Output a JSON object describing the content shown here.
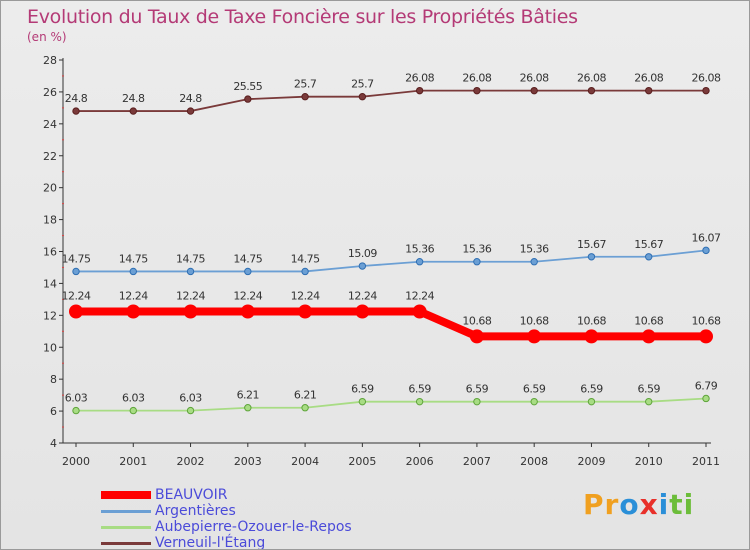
{
  "chart_data": {
    "type": "line",
    "title": "Evolution du Taux de Taxe Foncière sur les Propriétés Bâties",
    "unit_label": "(en %)",
    "x": [
      "2000",
      "2001",
      "2002",
      "2003",
      "2004",
      "2005",
      "2006",
      "2007",
      "2008",
      "2009",
      "2010",
      "2011"
    ],
    "ylim": [
      4,
      28
    ],
    "yticks": [
      4,
      6,
      8,
      10,
      12,
      14,
      16,
      18,
      20,
      22,
      24,
      26,
      28
    ],
    "grid": false,
    "legend_position": "bottom-left",
    "series": [
      {
        "name": "BEAUVOIR",
        "color": "#ff0000",
        "labels": [
          "12.24",
          "12.24",
          "12.24",
          "12.24",
          "12.24",
          "12.24",
          "12.24",
          "10.68",
          "10.68",
          "10.68",
          "10.68",
          "10.68"
        ],
        "values": [
          12.24,
          12.24,
          12.24,
          12.24,
          12.24,
          12.24,
          12.24,
          10.68,
          10.68,
          10.68,
          10.68,
          10.68
        ]
      },
      {
        "name": "Argentières",
        "color": "#6b9fd4",
        "labels": [
          "14.75",
          "14.75",
          "14.75",
          "14.75",
          "14.75",
          "15.09",
          "15.36",
          "15.36",
          "15.36",
          "15.67",
          "15.67",
          "16.07"
        ],
        "values": [
          14.75,
          14.75,
          14.75,
          14.75,
          14.75,
          15.09,
          15.36,
          15.36,
          15.36,
          15.67,
          15.67,
          16.07
        ]
      },
      {
        "name": "Aubepierre-Ozouer-le-Repos",
        "color": "#a8dc84",
        "labels": [
          "6.03",
          "6.03",
          "6.03",
          "6.21",
          "6.21",
          "6.59",
          "6.59",
          "6.59",
          "6.59",
          "6.59",
          "6.59",
          "6.79"
        ],
        "values": [
          6.03,
          6.03,
          6.03,
          6.21,
          6.21,
          6.59,
          6.59,
          6.59,
          6.59,
          6.59,
          6.59,
          6.79
        ]
      },
      {
        "name": "Verneuil-l'Étang",
        "color": "#7a3a3a",
        "labels": [
          "24.8",
          "24.8",
          "24.8",
          "25.55",
          "25.7",
          "25.7",
          "26.08",
          "26.08",
          "26.08",
          "26.08",
          "26.08",
          "26.08"
        ],
        "values": [
          24.8,
          24.8,
          24.8,
          25.55,
          25.7,
          25.7,
          26.08,
          26.08,
          26.08,
          26.08,
          26.08,
          26.08
        ]
      }
    ]
  },
  "brand": {
    "letters": [
      "P",
      "r",
      "o",
      "x",
      "i",
      "t",
      "i"
    ],
    "colors": [
      "#f0a020",
      "#f0a020",
      "#2a8fd8",
      "#e8302a",
      "#2a8fd8",
      "#6cbd3a",
      "#6cbd3a"
    ]
  }
}
